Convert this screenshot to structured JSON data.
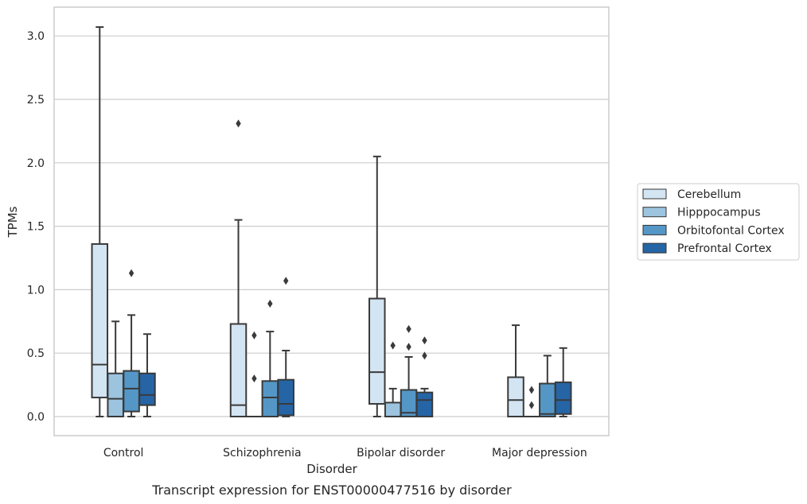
{
  "chart_data": {
    "type": "box",
    "title": "",
    "caption": "Transcript expression for ENST00000477516 by disorder",
    "xlabel": "Disorder",
    "ylabel": "TPMs",
    "ylim": [
      -0.15,
      3.23
    ],
    "yticks": [
      "0.0",
      "0.5",
      "1.0",
      "1.5",
      "2.0",
      "2.5",
      "3.0"
    ],
    "grid": "horizontal",
    "legend_position": "right",
    "categories": [
      "Control",
      "Schizophrenia",
      "Bipolar disorder",
      "Major depression"
    ],
    "series": [
      {
        "name": "Cerebellum",
        "color": "#d3e4f3",
        "boxes": [
          {
            "min": 0.0,
            "q1": 0.15,
            "median": 0.41,
            "q3": 1.36,
            "max": 3.07,
            "outliers": []
          },
          {
            "min": 0.0,
            "q1": 0.0,
            "median": 0.09,
            "q3": 0.73,
            "max": 1.55,
            "outliers": [
              2.31
            ]
          },
          {
            "min": 0.0,
            "q1": 0.1,
            "median": 0.35,
            "q3": 0.93,
            "max": 2.05,
            "outliers": []
          },
          {
            "min": 0.0,
            "q1": 0.0,
            "median": 0.13,
            "q3": 0.31,
            "max": 0.72,
            "outliers": []
          }
        ]
      },
      {
        "name": "Hipppocampus",
        "color": "#9cc4df",
        "boxes": [
          {
            "min": 0.0,
            "q1": 0.0,
            "median": 0.14,
            "q3": 0.34,
            "max": 0.75,
            "outliers": []
          },
          {
            "min": 0.0,
            "q1": 0.0,
            "median": 0.0,
            "q3": 0.0,
            "max": 0.0,
            "outliers": [
              0.64,
              0.3
            ]
          },
          {
            "min": 0.0,
            "q1": 0.0,
            "median": 0.0,
            "q3": 0.11,
            "max": 0.22,
            "outliers": [
              0.56
            ]
          },
          {
            "min": 0.0,
            "q1": 0.0,
            "median": 0.0,
            "q3": 0.0,
            "max": 0.0,
            "outliers": [
              0.21,
              0.09
            ]
          }
        ]
      },
      {
        "name": "Orbitofontal Cortex",
        "color": "#5497c7",
        "boxes": [
          {
            "min": 0.0,
            "q1": 0.04,
            "median": 0.22,
            "q3": 0.36,
            "max": 0.8,
            "outliers": [
              1.13
            ]
          },
          {
            "min": 0.0,
            "q1": 0.0,
            "median": 0.15,
            "q3": 0.28,
            "max": 0.67,
            "outliers": [
              0.89
            ]
          },
          {
            "min": 0.0,
            "q1": 0.0,
            "median": 0.03,
            "q3": 0.21,
            "max": 0.47,
            "outliers": [
              0.69,
              0.55
            ]
          },
          {
            "min": 0.0,
            "q1": 0.0,
            "median": 0.02,
            "q3": 0.26,
            "max": 0.48,
            "outliers": []
          }
        ]
      },
      {
        "name": "Prefrontal Cortex",
        "color": "#2565a6",
        "boxes": [
          {
            "min": 0.0,
            "q1": 0.09,
            "median": 0.17,
            "q3": 0.34,
            "max": 0.65,
            "outliers": []
          },
          {
            "min": 0.0,
            "q1": 0.01,
            "median": 0.1,
            "q3": 0.29,
            "max": 0.52,
            "outliers": [
              1.07
            ]
          },
          {
            "min": 0.0,
            "q1": 0.0,
            "median": 0.13,
            "q3": 0.19,
            "max": 0.22,
            "outliers": [
              0.6,
              0.48
            ]
          },
          {
            "min": 0.0,
            "q1": 0.02,
            "median": 0.13,
            "q3": 0.27,
            "max": 0.54,
            "outliers": []
          }
        ]
      }
    ]
  }
}
